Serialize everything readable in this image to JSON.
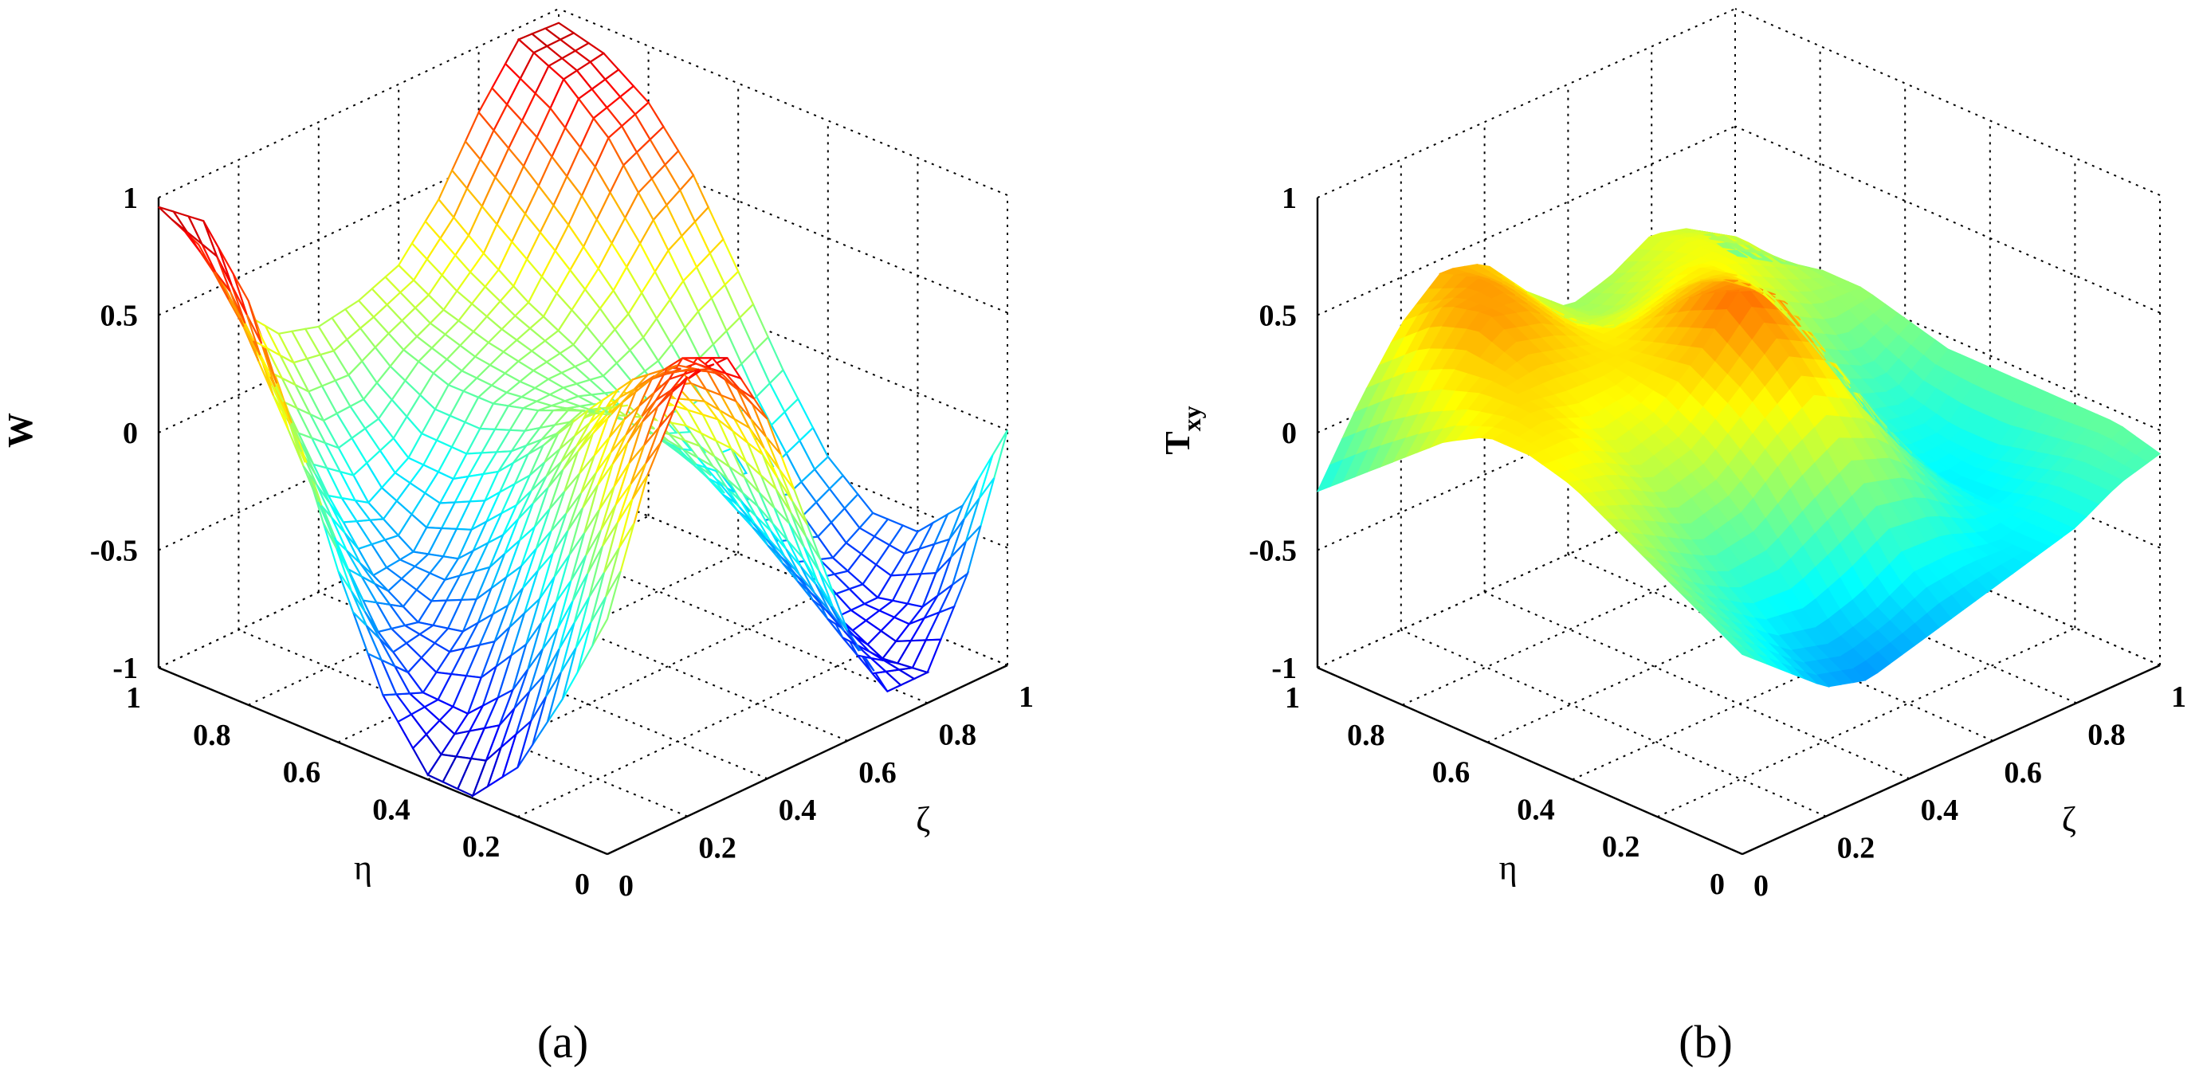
{
  "chart_data": [
    {
      "panel": "a",
      "type": "surface-mesh",
      "caption": "(a)",
      "xlabel": "ζ",
      "ylabel": "η",
      "zlabel": "W",
      "xlim": [
        0,
        1
      ],
      "ylim": [
        0,
        1
      ],
      "zlim": [
        -1,
        1
      ],
      "xticks": [
        "0",
        "0.2",
        "0.4",
        "0.6",
        "0.8",
        "1"
      ],
      "yticks": [
        "0",
        "0.2",
        "0.4",
        "0.6",
        "0.8",
        "1"
      ],
      "zticks": [
        "-1",
        "-0.5",
        "0",
        "0.5",
        "1"
      ],
      "grid": true,
      "colormap": "jet",
      "x": [
        0,
        0.1,
        0.2,
        0.3,
        0.4,
        0.5,
        0.6,
        0.7,
        0.8,
        0.9,
        1
      ],
      "y": [
        0,
        0.1,
        0.2,
        0.3,
        0.4,
        0.5,
        0.6,
        0.7,
        0.8,
        0.9,
        1
      ],
      "z": [
        [
          0.0,
          0.53,
          0.87,
          0.87,
          0.53,
          0.0,
          -0.53,
          -0.87,
          -0.87,
          -0.53,
          0.0
        ],
        [
          -0.42,
          0.15,
          0.6,
          0.79,
          0.64,
          0.22,
          -0.3,
          -0.72,
          -0.89,
          -0.75,
          -0.4
        ],
        [
          -0.79,
          -0.28,
          0.25,
          0.59,
          0.6,
          0.29,
          -0.16,
          -0.56,
          -0.79,
          -0.79,
          -0.59
        ],
        [
          -0.99,
          -0.62,
          -0.12,
          0.31,
          0.46,
          0.27,
          -0.07,
          -0.41,
          -0.64,
          -0.7,
          -0.59
        ],
        [
          -0.98,
          -0.8,
          -0.42,
          0.0,
          0.25,
          0.19,
          -0.04,
          -0.28,
          -0.45,
          -0.51,
          -0.43
        ],
        [
          -0.72,
          -0.79,
          -0.61,
          -0.28,
          0.02,
          0.09,
          -0.03,
          -0.17,
          -0.24,
          -0.23,
          -0.14
        ],
        [
          -0.27,
          -0.61,
          -0.65,
          -0.46,
          -0.17,
          0.01,
          -0.01,
          -0.07,
          -0.02,
          0.11,
          0.2
        ],
        [
          0.27,
          -0.29,
          -0.53,
          -0.51,
          -0.28,
          -0.04,
          0.02,
          0.05,
          0.2,
          0.42,
          0.53
        ],
        [
          0.72,
          0.09,
          -0.27,
          -0.38,
          -0.27,
          -0.04,
          0.06,
          0.15,
          0.4,
          0.69,
          0.76
        ],
        [
          0.98,
          0.45,
          0.05,
          -0.11,
          -0.1,
          0.03,
          0.12,
          0.28,
          0.57,
          0.86,
          0.89
        ],
        [
          0.96,
          0.72,
          0.36,
          0.18,
          0.13,
          0.16,
          0.23,
          0.43,
          0.72,
          0.95,
          0.94
        ]
      ]
    },
    {
      "panel": "b",
      "type": "surface",
      "caption": "(b)",
      "xlabel": "ζ",
      "ylabel": "η",
      "zlabel": "T",
      "zlabel_sub": "xy",
      "xlim": [
        0,
        1
      ],
      "ylim": [
        0,
        1
      ],
      "zlim": [
        -1,
        1
      ],
      "xticks": [
        "0",
        "0.2",
        "0.4",
        "0.6",
        "0.8",
        "1"
      ],
      "yticks": [
        "0",
        "0.2",
        "0.4",
        "0.6",
        "0.8",
        "1"
      ],
      "zticks": [
        "-1",
        "-0.5",
        "0",
        "0.5",
        "1"
      ],
      "grid": true,
      "colormap": "jet",
      "x": [
        0,
        0.1,
        0.2,
        0.3,
        0.4,
        0.5,
        0.6,
        0.7,
        0.8,
        0.9,
        1
      ],
      "y": [
        0,
        0.1,
        0.2,
        0.3,
        0.4,
        0.5,
        0.6,
        0.7,
        0.8,
        0.9,
        1
      ],
      "z": [
        [
          -0.15,
          -0.3,
          -0.45,
          -0.5,
          -0.45,
          -0.4,
          -0.35,
          -0.3,
          -0.25,
          -0.15,
          -0.1
        ],
        [
          -0.05,
          -0.2,
          -0.35,
          -0.4,
          -0.35,
          -0.25,
          -0.25,
          -0.3,
          -0.25,
          -0.15,
          -0.05
        ],
        [
          0.05,
          -0.1,
          -0.2,
          -0.2,
          -0.1,
          0.0,
          -0.05,
          -0.2,
          -0.3,
          -0.2,
          -0.05
        ],
        [
          0.15,
          0.05,
          -0.05,
          0.0,
          0.15,
          0.25,
          0.15,
          -0.1,
          -0.3,
          -0.25,
          -0.05
        ],
        [
          0.25,
          0.2,
          0.1,
          0.15,
          0.3,
          0.45,
          0.35,
          0.05,
          -0.25,
          -0.25,
          -0.05
        ],
        [
          0.3,
          0.3,
          0.2,
          0.25,
          0.4,
          0.6,
          0.5,
          0.2,
          -0.15,
          -0.2,
          -0.05
        ],
        [
          0.3,
          0.35,
          0.3,
          0.3,
          0.35,
          0.5,
          0.5,
          0.3,
          0.0,
          -0.1,
          0.0
        ],
        [
          0.2,
          0.35,
          0.4,
          0.35,
          0.3,
          0.35,
          0.4,
          0.35,
          0.15,
          0.05,
          0.05
        ],
        [
          0.05,
          0.3,
          0.5,
          0.45,
          0.3,
          0.2,
          0.25,
          0.3,
          0.25,
          0.15,
          0.05
        ],
        [
          -0.1,
          0.2,
          0.45,
          0.5,
          0.35,
          0.15,
          0.1,
          0.2,
          0.25,
          0.2,
          0.0
        ],
        [
          -0.25,
          0.05,
          0.3,
          0.45,
          0.4,
          0.2,
          0.05,
          0.1,
          0.2,
          0.15,
          -0.05
        ]
      ]
    }
  ]
}
